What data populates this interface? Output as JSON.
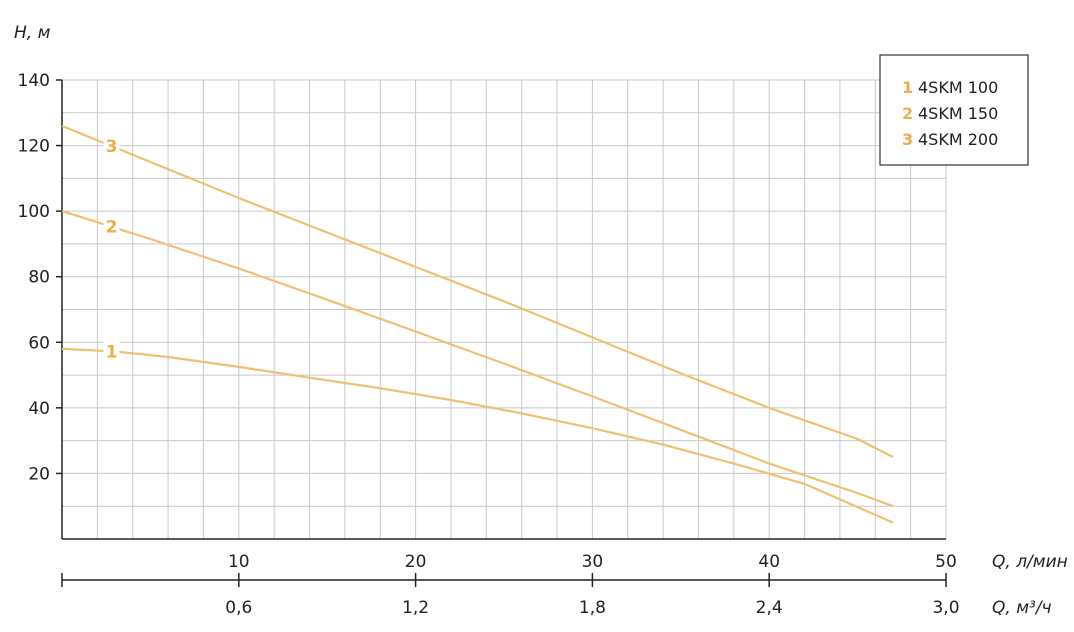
{
  "chart_data": {
    "type": "line",
    "ylabel": "H, м",
    "xlabel": "Q, л/мин",
    "xlabel_secondary": "Q, м³/ч",
    "xlim": [
      0,
      50
    ],
    "ylim": [
      0,
      140
    ],
    "y_ticks": [
      "20",
      "40",
      "60",
      "80",
      "100",
      "120",
      "140"
    ],
    "y_tick_values": [
      20,
      40,
      60,
      80,
      100,
      120,
      140
    ],
    "x_ticks": [
      "10",
      "20",
      "30",
      "40",
      "50"
    ],
    "x_tick_values": [
      10,
      20,
      30,
      40,
      50
    ],
    "x2_ticks": [
      "0,6",
      "1,2",
      "1,8",
      "2,4",
      "3,0"
    ],
    "x2_tick_values": [
      0.6,
      1.2,
      1.8,
      2.4,
      3.0
    ],
    "grid": true,
    "legend_position": "top-right",
    "colors": {
      "curve": "#F0C070",
      "label": "#E8B04A",
      "grid": "#C8C8C8",
      "axis": "#222222"
    },
    "series": [
      {
        "name": "4SKM 100",
        "number": "1",
        "x": [
          0,
          3,
          6,
          10,
          14,
          18,
          22,
          26,
          30,
          34,
          38,
          42,
          47
        ],
        "y": [
          58,
          57.2,
          55.5,
          52.5,
          49.2,
          46,
          42.4,
          38.3,
          33.8,
          28.8,
          23,
          16.8,
          5
        ],
        "label_x": 2.8
      },
      {
        "name": "4SKM 150",
        "number": "2",
        "x": [
          0,
          5,
          10,
          15,
          20,
          25,
          30,
          35,
          40,
          45,
          47
        ],
        "y": [
          100,
          91.5,
          82.5,
          73,
          63.3,
          53.5,
          43.5,
          33.3,
          23,
          14,
          10
        ],
        "label_x": 2.8
      },
      {
        "name": "4SKM 200",
        "number": "3",
        "x": [
          0,
          5,
          10,
          15,
          20,
          25,
          30,
          35,
          40,
          45,
          47
        ],
        "y": [
          126,
          115,
          104,
          93.5,
          83,
          72.5,
          61.5,
          50.5,
          40,
          30.5,
          25
        ],
        "label_x": 2.8
      }
    ]
  }
}
